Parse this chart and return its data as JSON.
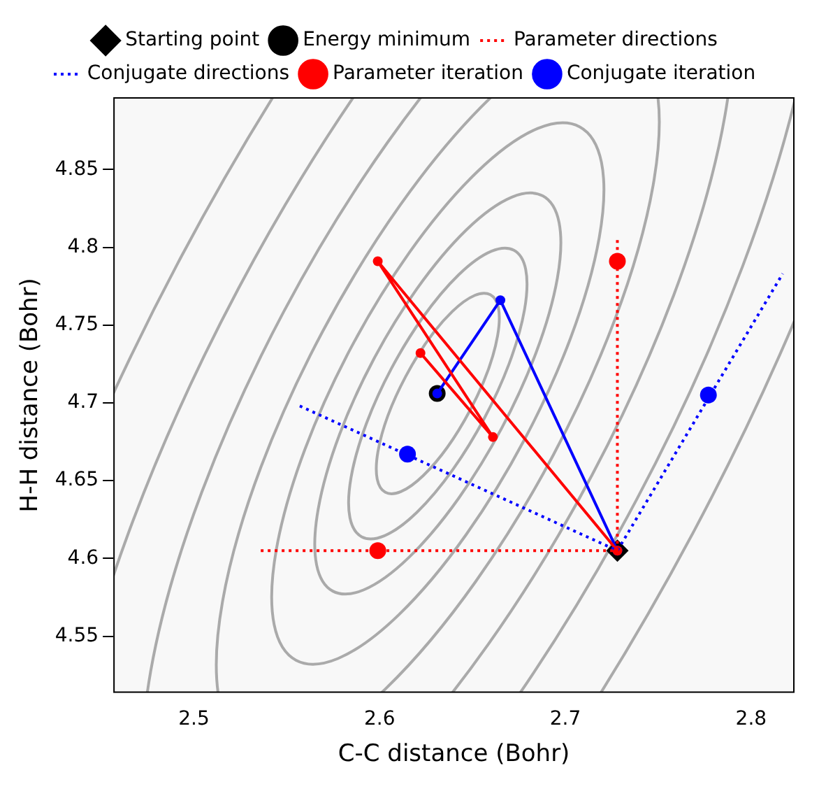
{
  "chart_data": {
    "type": "line",
    "xlabel": "C-C distance (Bohr)",
    "ylabel": "H-H distance (Bohr)",
    "xlim": [
      2.457,
      2.823
    ],
    "xticks": [
      2.5,
      2.6,
      2.7,
      2.8
    ],
    "ylim": [
      4.514,
      4.896
    ],
    "yticks": [
      4.55,
      4.6,
      4.65,
      4.7,
      4.75,
      4.8,
      4.85
    ],
    "grid": false,
    "legend": "top",
    "series": [
      {
        "name": "Starting point",
        "type": "scatter",
        "marker": "diamond",
        "color": "#000000",
        "x": [
          2.728
        ],
        "values": [
          4.605
        ]
      },
      {
        "name": "Energy minimum",
        "type": "scatter",
        "marker": "circle",
        "color": "#000000",
        "x": [
          2.631
        ],
        "values": [
          4.706
        ]
      },
      {
        "name": "Parameter directions",
        "type": "line",
        "line_style": "dotted",
        "marker": "none",
        "color": "#ff0000",
        "x": [
          2.536,
          2.728,
          null,
          2.728,
          2.728
        ],
        "values": [
          4.605,
          4.605,
          null,
          4.605,
          4.805
        ]
      },
      {
        "name": "Conjugate directions",
        "type": "line",
        "line_style": "dotted",
        "marker": "none",
        "color": "#0000ff",
        "x": [
          2.557,
          2.728,
          2.817
        ],
        "values": [
          4.698,
          4.605,
          4.783
        ]
      },
      {
        "name": "Parameter iteration",
        "type": "line",
        "line_style": "solid",
        "marker": "circle",
        "color": "#ff0000",
        "x": [
          2.728,
          2.599,
          2.661,
          2.622
        ],
        "values": [
          4.605,
          4.791,
          4.678,
          4.732
        ]
      },
      {
        "name": "Conjugate iteration",
        "type": "line",
        "line_style": "solid",
        "marker": "circle",
        "color": "#0000ff",
        "x": [
          2.728,
          2.665,
          2.631
        ],
        "values": [
          4.605,
          4.766,
          4.706
        ]
      },
      {
        "type": "scatter",
        "marker": "circle",
        "color": "#ff0000",
        "x": [
          2.599,
          2.728
        ],
        "values": [
          4.605,
          4.791
        ]
      },
      {
        "type": "scatter",
        "marker": "circle",
        "color": "#0000ff",
        "x": [
          2.615,
          2.777
        ],
        "values": [
          4.667,
          4.705
        ]
      }
    ]
  }
}
